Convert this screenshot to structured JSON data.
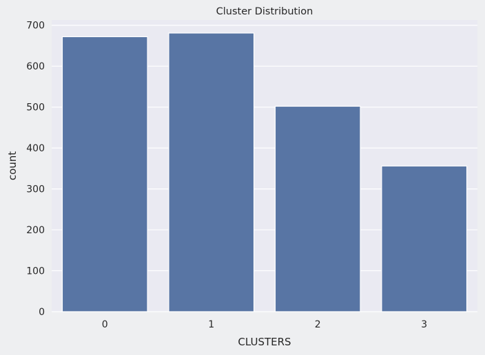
{
  "chart_data": {
    "type": "bar",
    "title": "Cluster Distribution",
    "xlabel": "CLUSTERS",
    "ylabel": "count",
    "categories": [
      "0",
      "1",
      "2",
      "3"
    ],
    "values": [
      672,
      681,
      502,
      356
    ],
    "ylim": [
      0,
      713
    ],
    "yticks": [
      0,
      100,
      200,
      300,
      400,
      500,
      600,
      700
    ],
    "grid": true,
    "colors": {
      "bar": "#5875a4",
      "plot_background": "#eaeaf2",
      "grid": "#ffffff",
      "page_background": "#eeeff1"
    }
  }
}
